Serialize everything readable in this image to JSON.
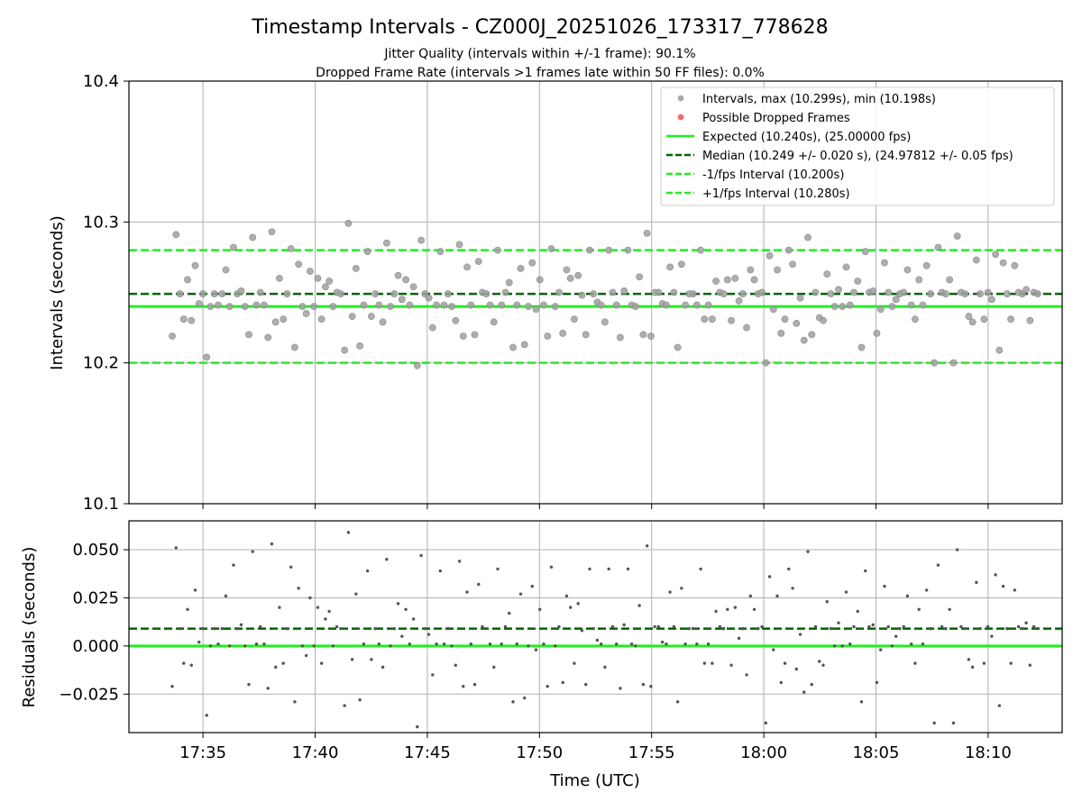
{
  "chart_data": [
    {
      "type": "scatter",
      "title": "Timestamp Intervals - CZ000J_20251026_173317_778628",
      "subtitle_lines": [
        "Jitter Quality (intervals within +/-1 frame): 90.1%",
        "Dropped Frame Rate (intervals >1 frames late within 50 FF files): 0.0%"
      ],
      "xlabel": "",
      "ylabel": "Intervals (seconds)",
      "ylim": [
        10.1,
        10.4
      ],
      "yticks": [
        "10.1",
        "10.2",
        "10.3",
        "10.4"
      ],
      "grid": true,
      "legend_position": "upper right",
      "legend": [
        {
          "label": "Intervals, max (10.299s), min (10.198s)",
          "kind": "marker",
          "color": "#a0a0a0"
        },
        {
          "label": "Possible Dropped Frames",
          "kind": "marker",
          "color": "#f05a5a"
        },
        {
          "label": "Expected (10.240s), (25.00000 fps)",
          "kind": "solid",
          "color": "#22ee22"
        },
        {
          "label": "Median (10.249 +/- 0.020 s), (24.97812 +/- 0.05 fps)",
          "kind": "dashed",
          "color": "#006400"
        },
        {
          "label": "-1/fps Interval (10.200s)",
          "kind": "dashed",
          "color": "#22ee22"
        },
        {
          "label": "+1/fps Interval (10.280s)",
          "kind": "dashed",
          "color": "#22ee22"
        }
      ],
      "reference_lines": {
        "expected": 10.24,
        "median": 10.249,
        "minus_1fps": 10.2,
        "plus_1fps": 10.28
      },
      "x_start_minutes": 33.63,
      "x_step_minutes": 0.1707,
      "series": [
        {
          "name": "Intervals, max (10.299s), min (10.198s)",
          "values": [
            10.219,
            10.291,
            10.249,
            10.231,
            10.259,
            10.23,
            10.269,
            10.242,
            10.249,
            10.204,
            10.24,
            10.249,
            10.241,
            10.249,
            10.266,
            10.24,
            10.282,
            10.249,
            10.251,
            10.24,
            10.22,
            10.289,
            10.241,
            10.25,
            10.241,
            10.218,
            10.293,
            10.229,
            10.26,
            10.231,
            10.249,
            10.281,
            10.211,
            10.27,
            10.24,
            10.235,
            10.265,
            10.24,
            10.26,
            10.231,
            10.254,
            10.258,
            10.24,
            10.25,
            10.249,
            10.209,
            10.299,
            10.233,
            10.267,
            10.212,
            10.241,
            10.279,
            10.233,
            10.249,
            10.241,
            10.229,
            10.285,
            10.24,
            10.249,
            10.262,
            10.245,
            10.259,
            10.241,
            10.254,
            10.198,
            10.287,
            10.249,
            10.246,
            10.225,
            10.241,
            10.279,
            10.241,
            10.249,
            10.24,
            10.23,
            10.284,
            10.219,
            10.268,
            10.241,
            10.22,
            10.272,
            10.25,
            10.249,
            10.241,
            10.229,
            10.28,
            10.241,
            10.25,
            10.257,
            10.211,
            10.241,
            10.267,
            10.213,
            10.24,
            10.271,
            10.238,
            10.259,
            10.241,
            10.219,
            10.281,
            10.24,
            10.25,
            10.221,
            10.266,
            10.26,
            10.231,
            10.262,
            10.248,
            10.22,
            10.28,
            10.249,
            10.243,
            10.241,
            10.229,
            10.28,
            10.25,
            10.241,
            10.218,
            10.251,
            10.28,
            10.241,
            10.24,
            10.261,
            10.22,
            10.292,
            10.219,
            10.25,
            10.25,
            10.242,
            10.241,
            10.268,
            10.25,
            10.211,
            10.27,
            10.241,
            10.249,
            10.249,
            10.241,
            10.28,
            10.231,
            10.241,
            10.231,
            10.258,
            10.25,
            10.249,
            10.259,
            10.23,
            10.26,
            10.244,
            10.249,
            10.225,
            10.266,
            10.259,
            10.249,
            10.25,
            10.2,
            10.276,
            10.238,
            10.266,
            10.221,
            10.231,
            10.28,
            10.27,
            10.228,
            10.246,
            10.216,
            10.289,
            10.22,
            10.25,
            10.232,
            10.23,
            10.263,
            10.249,
            10.24,
            10.252,
            10.24,
            10.268,
            10.241,
            10.25,
            10.258,
            10.211,
            10.279,
            10.25,
            10.251,
            10.221,
            10.238,
            10.271,
            10.25,
            10.24,
            10.245,
            10.249,
            10.25,
            10.266,
            10.241,
            10.231,
            10.259,
            10.241,
            10.269,
            10.249,
            10.2,
            10.282,
            10.25,
            10.249,
            10.259,
            10.2,
            10.29,
            10.25,
            10.249,
            10.233,
            10.229,
            10.273,
            10.249,
            10.231,
            10.25,
            10.245,
            10.277,
            10.209,
            10.271,
            10.249,
            10.231,
            10.269,
            10.25,
            10.249,
            10.252,
            10.23,
            10.25,
            10.249
          ]
        },
        {
          "name": "Possible Dropped Frames",
          "values": []
        }
      ]
    },
    {
      "type": "scatter",
      "title": "",
      "xlabel": "Time (UTC)",
      "ylabel": "Residuals (seconds)",
      "ylim": [
        -0.045,
        0.065
      ],
      "yticks": [
        "−0.025",
        "0.000",
        "0.025",
        "0.050"
      ],
      "ytick_values": [
        -0.025,
        0.0,
        0.025,
        0.05
      ],
      "xticks": [
        "17:35",
        "17:40",
        "17:45",
        "17:50",
        "17:55",
        "18:00",
        "18:05",
        "18:10"
      ],
      "xtick_minutes": [
        35,
        40,
        45,
        50,
        55,
        60,
        65,
        70
      ],
      "xlim_minutes": [
        31.7,
        73.3
      ],
      "grid": true,
      "reference_lines": {
        "zero": 0.0,
        "median_offset": 0.009
      },
      "series": [
        {
          "name": "Residuals",
          "values": "intervals minus expected (10.240 s)"
        }
      ]
    }
  ]
}
